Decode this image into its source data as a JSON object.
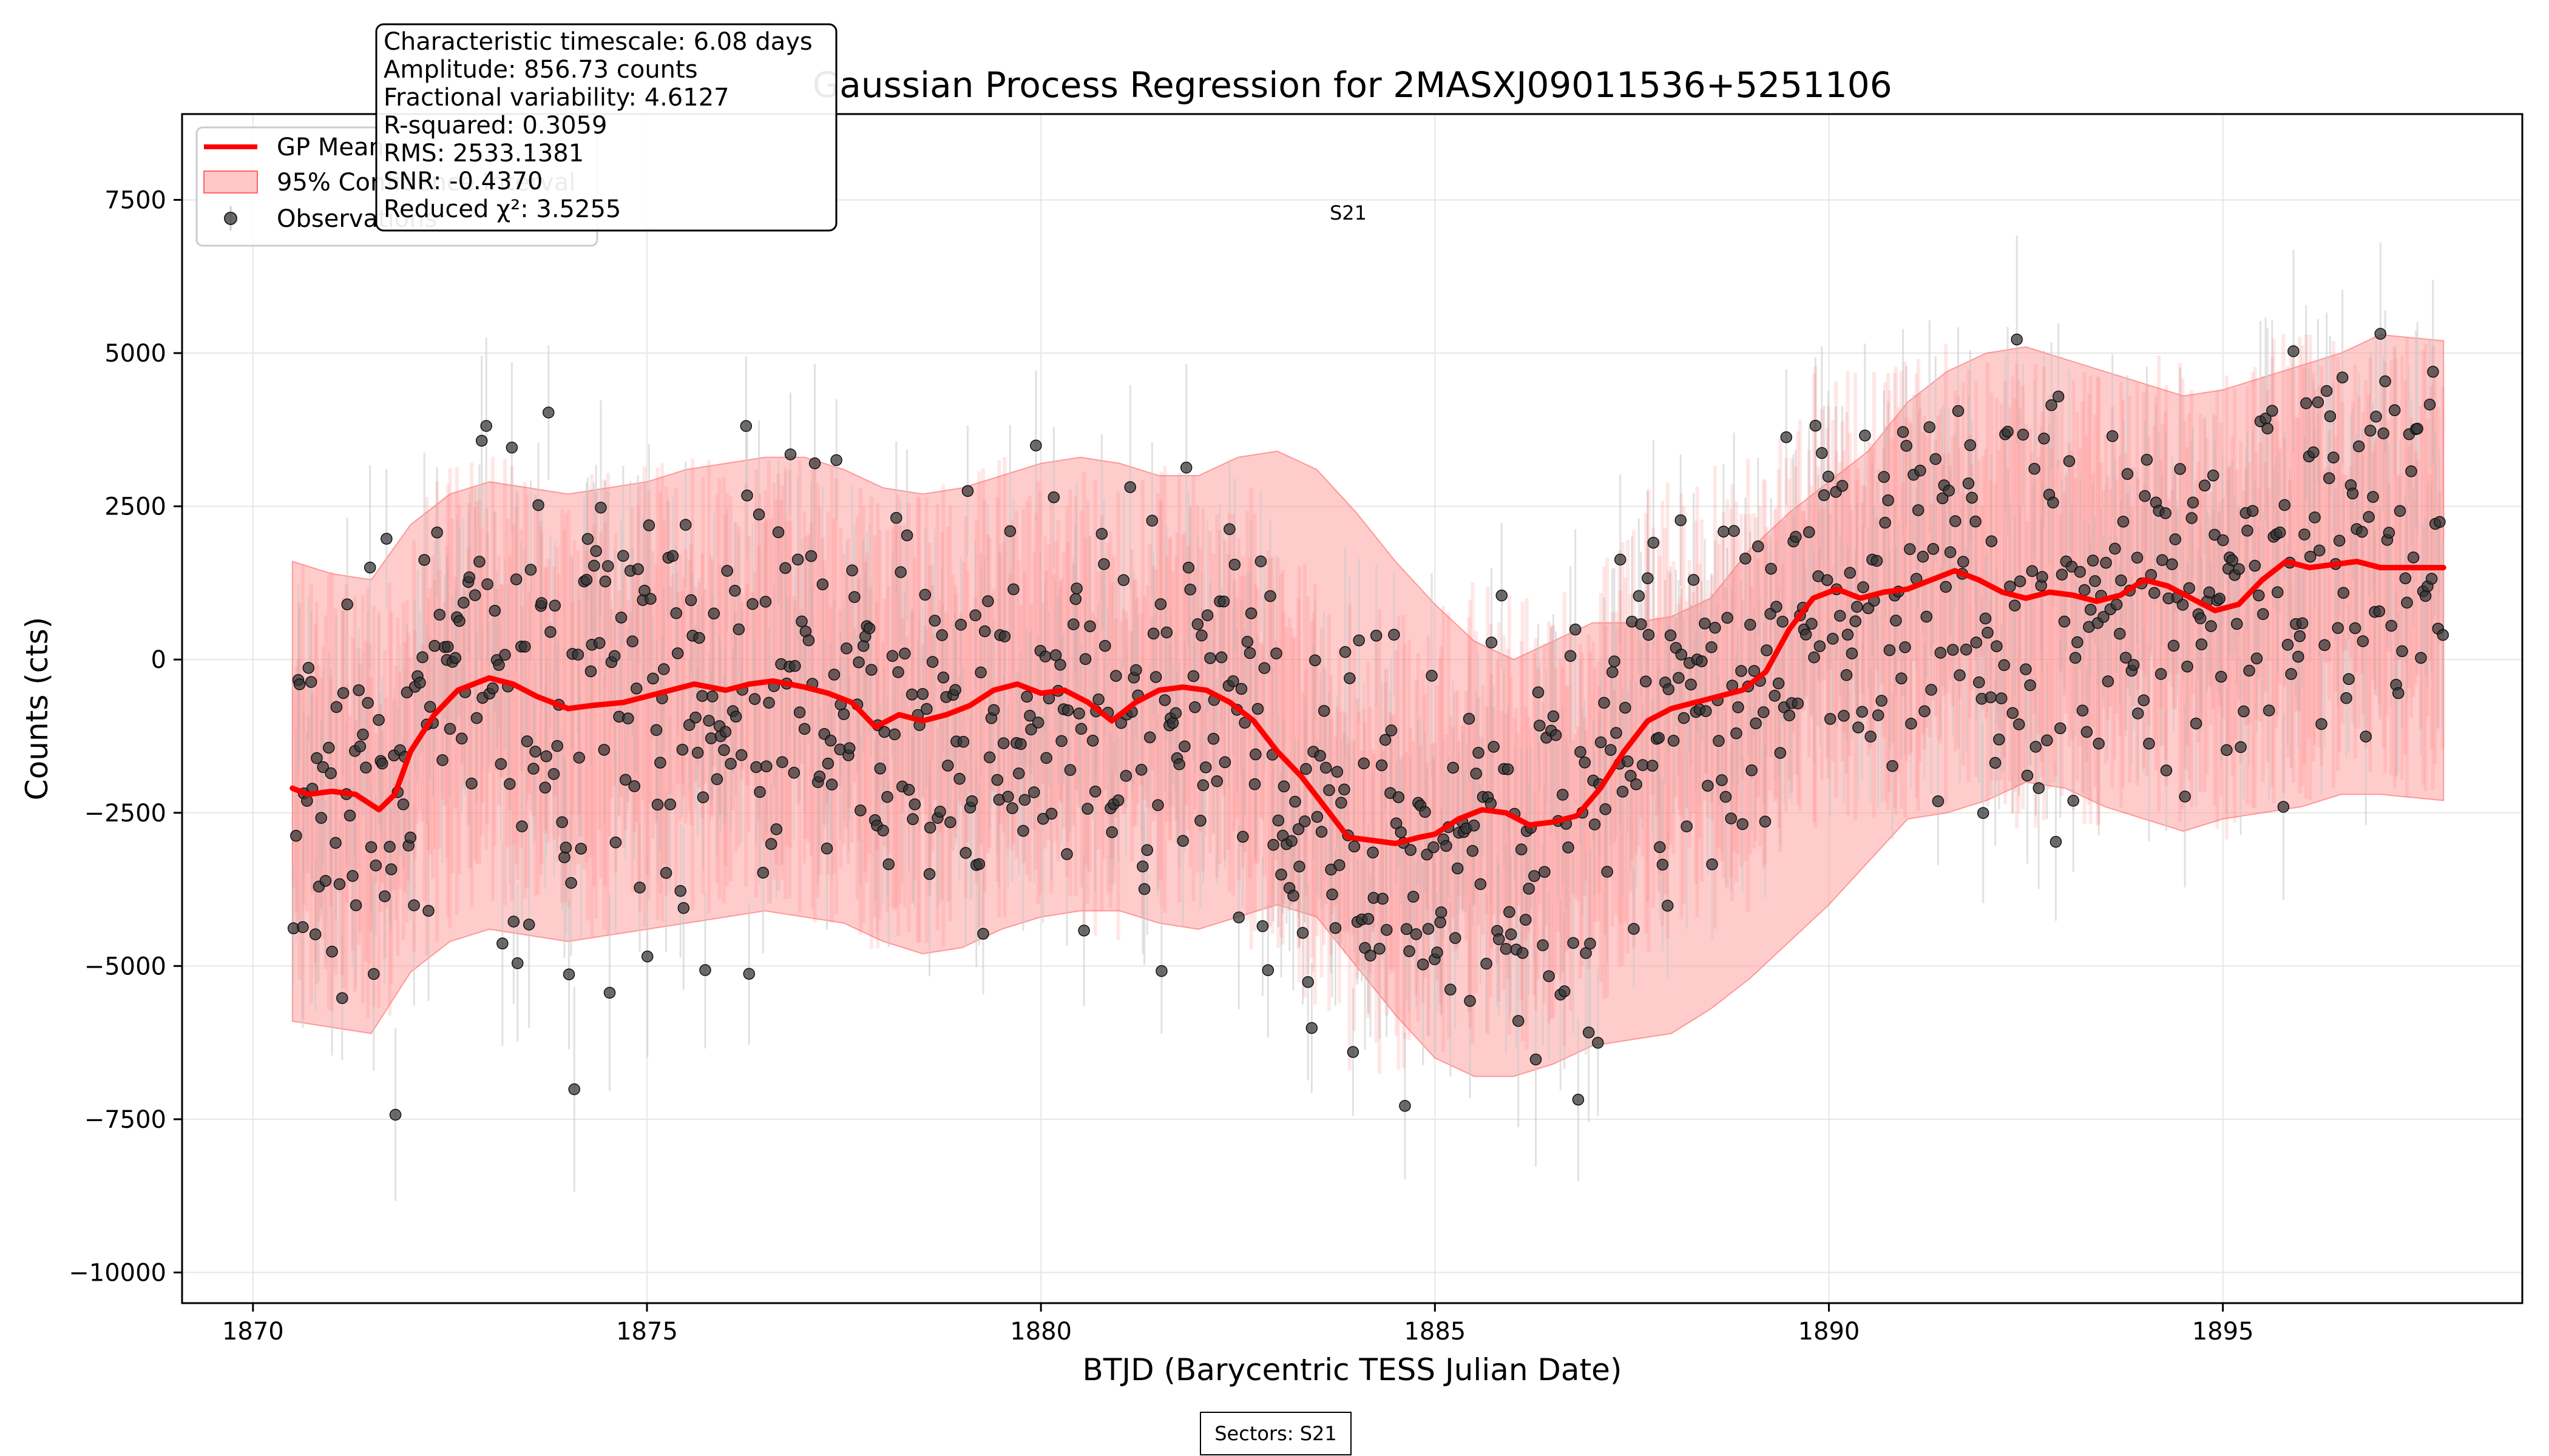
{
  "chart_data": {
    "type": "line",
    "title": "Gaussian Process Regression for 2MASXJ09011536+5251106",
    "xlabel": "BTJD (Barycentric TESS Julian Date)",
    "ylabel": "Counts (cts)",
    "xlim": [
      1869.1,
      1898.8
    ],
    "ylim": [
      -10500,
      8900
    ],
    "xticks": [
      1870,
      1875,
      1880,
      1885,
      1890,
      1895
    ],
    "yticks": [
      7500,
      5000,
      2500,
      0,
      -2500,
      -5000,
      -7500,
      -10000
    ],
    "ytick_labels": [
      "7500",
      "5000",
      "2500",
      "0",
      "−2500",
      "−5000",
      "−7500",
      "−10000"
    ],
    "grid": true,
    "legend_position": "top-left",
    "legend": [
      {
        "label": "GP Mean",
        "kind": "line",
        "color": "#ff0000"
      },
      {
        "label": "95% Confidence Interval",
        "kind": "band",
        "color": "#ff9999"
      },
      {
        "label": "Observations",
        "kind": "point",
        "color": "#444444"
      }
    ],
    "stats_lines": [
      "Characteristic timescale: 6.08 days",
      "Amplitude: 856.73 counts",
      "Fractional variability: 4.6127",
      "R-squared: 0.3059",
      "RMS: 2533.1381",
      "SNR: -0.4370",
      "Reduced χ²: 3.5255"
    ],
    "sector_label": "S21",
    "sector_label_x": 1883.9,
    "sectors_box_text": "Sectors: S21",
    "gp_mean": {
      "x": [
        1870.5,
        1870.7,
        1871.0,
        1871.3,
        1871.6,
        1871.8,
        1872.0,
        1872.3,
        1872.6,
        1873.0,
        1873.3,
        1873.6,
        1874.0,
        1874.3,
        1874.7,
        1875.0,
        1875.3,
        1875.6,
        1876.0,
        1876.3,
        1876.6,
        1877.0,
        1877.3,
        1877.6,
        1877.9,
        1878.2,
        1878.5,
        1878.8,
        1879.1,
        1879.4,
        1879.7,
        1880.0,
        1880.3,
        1880.6,
        1880.9,
        1881.2,
        1881.5,
        1881.8,
        1882.1,
        1882.4,
        1882.7,
        1883.0,
        1883.3,
        1883.6,
        1883.9,
        1884.2,
        1884.5,
        1884.8,
        1885.0,
        1885.3,
        1885.6,
        1885.9,
        1886.2,
        1886.5,
        1886.8,
        1887.1,
        1887.4,
        1887.7,
        1888.0,
        1888.3,
        1888.6,
        1888.9,
        1889.2,
        1889.5,
        1889.8,
        1890.1,
        1890.4,
        1890.7,
        1891.0,
        1891.3,
        1891.6,
        1891.9,
        1892.2,
        1892.5,
        1892.8,
        1893.1,
        1893.4,
        1893.7,
        1894.0,
        1894.3,
        1894.6,
        1894.9,
        1895.2,
        1895.5,
        1895.8,
        1896.1,
        1896.4,
        1896.7,
        1897.0,
        1897.3,
        1897.6,
        1897.8
      ],
      "y": [
        -2100,
        -2200,
        -2150,
        -2200,
        -2450,
        -2200,
        -1500,
        -900,
        -500,
        -300,
        -400,
        -600,
        -800,
        -750,
        -700,
        -600,
        -500,
        -400,
        -500,
        -400,
        -350,
        -450,
        -550,
        -700,
        -1100,
        -900,
        -1000,
        -900,
        -750,
        -500,
        -400,
        -550,
        -500,
        -700,
        -1000,
        -700,
        -500,
        -450,
        -500,
        -700,
        -1000,
        -1500,
        -1900,
        -2400,
        -2900,
        -2950,
        -3000,
        -2900,
        -2850,
        -2600,
        -2450,
        -2500,
        -2700,
        -2650,
        -2550,
        -2100,
        -1500,
        -1000,
        -800,
        -700,
        -600,
        -500,
        -200,
        500,
        1000,
        1150,
        1000,
        1100,
        1150,
        1300,
        1450,
        1300,
        1100,
        1000,
        1100,
        1050,
        950,
        1050,
        1300,
        1200,
        1000,
        800,
        900,
        1300,
        1600,
        1500,
        1550,
        1600,
        1500,
        1500,
        1500,
        1500
      ]
    },
    "ci_band": {
      "x": [
        1870.5,
        1871.0,
        1871.5,
        1872.0,
        1872.5,
        1873.0,
        1873.5,
        1874.0,
        1874.5,
        1875.0,
        1875.5,
        1876.0,
        1876.5,
        1877.0,
        1877.5,
        1878.0,
        1878.5,
        1879.0,
        1879.5,
        1880.0,
        1880.5,
        1881.0,
        1881.5,
        1882.0,
        1882.5,
        1883.0,
        1883.5,
        1884.0,
        1884.5,
        1885.0,
        1885.5,
        1886.0,
        1886.5,
        1887.0,
        1887.5,
        1888.0,
        1888.5,
        1889.0,
        1889.5,
        1890.0,
        1890.5,
        1891.0,
        1891.5,
        1892.0,
        1892.5,
        1893.0,
        1893.5,
        1894.0,
        1894.5,
        1895.0,
        1895.5,
        1896.0,
        1896.5,
        1897.0,
        1897.8
      ],
      "upper": [
        1600,
        1400,
        1300,
        2200,
        2700,
        2900,
        2800,
        2700,
        2800,
        2900,
        3100,
        3200,
        3300,
        3300,
        3100,
        2800,
        2700,
        2800,
        3000,
        3200,
        3300,
        3200,
        3000,
        3000,
        3300,
        3400,
        3100,
        2400,
        1600,
        900,
        300,
        0,
        300,
        600,
        600,
        700,
        1000,
        1800,
        2400,
        2900,
        3400,
        4200,
        4700,
        5000,
        5100,
        4900,
        4700,
        4500,
        4300,
        4400,
        4600,
        4800,
        5000,
        5300,
        5200
      ],
      "lower": [
        -5900,
        -6000,
        -6100,
        -5100,
        -4600,
        -4400,
        -4500,
        -4600,
        -4500,
        -4400,
        -4300,
        -4200,
        -4100,
        -4200,
        -4300,
        -4600,
        -4800,
        -4700,
        -4400,
        -4200,
        -4100,
        -4100,
        -4300,
        -4400,
        -4200,
        -4000,
        -4200,
        -5000,
        -5800,
        -6500,
        -6800,
        -6800,
        -6600,
        -6300,
        -6200,
        -6100,
        -5700,
        -5200,
        -4600,
        -4000,
        -3300,
        -2600,
        -2500,
        -2300,
        -2000,
        -2100,
        -2400,
        -2600,
        -2800,
        -2600,
        -2500,
        -2400,
        -2200,
        -2200,
        -2300
      ]
    },
    "observations": {
      "count": 985,
      "x_range": [
        1870.5,
        1897.8
      ],
      "mean_y": -280,
      "typical_error": 1300
    }
  }
}
